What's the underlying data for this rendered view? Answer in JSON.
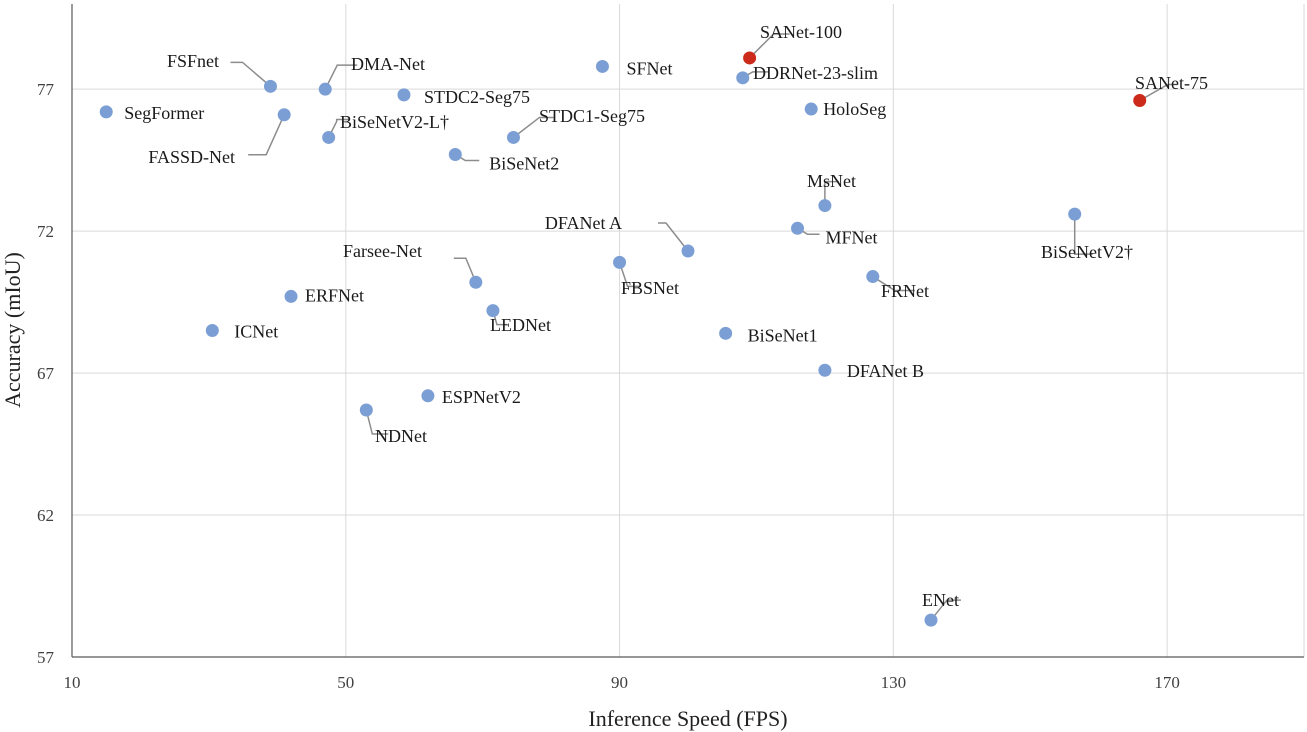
{
  "chart_data": {
    "type": "scatter",
    "xlabel": "Inference Speed (FPS)",
    "ylabel": "Accuracy (mIoU)",
    "xlim": [
      10,
      190
    ],
    "ylim": [
      57,
      80
    ],
    "xticks": [
      10,
      50,
      90,
      130,
      170
    ],
    "yticks": [
      57,
      62,
      67,
      72,
      77
    ],
    "grid": true,
    "colors": {
      "default": "#7b9fd4",
      "highlight": "#cc2a1a"
    },
    "points": [
      {
        "label": "SegFormer",
        "x": 15,
        "y": 76.2
      },
      {
        "label": "FSFnet",
        "x": 39,
        "y": 77.1
      },
      {
        "label": "FASSD-Net",
        "x": 41,
        "y": 76.1
      },
      {
        "label": "ERFNet",
        "x": 42,
        "y": 69.7
      },
      {
        "label": "ICNet",
        "x": 30.5,
        "y": 68.5
      },
      {
        "label": "DMA-Net",
        "x": 47,
        "y": 77.0
      },
      {
        "label": "BiSeNetV2-L†",
        "x": 47.5,
        "y": 75.3
      },
      {
        "label": "STDC2-Seg75",
        "x": 58.5,
        "y": 76.8
      },
      {
        "label": "NDNet",
        "x": 53,
        "y": 65.7
      },
      {
        "label": "ESPNetV2",
        "x": 62,
        "y": 66.2
      },
      {
        "label": "BiSeNet2",
        "x": 66,
        "y": 74.7
      },
      {
        "label": "Farsee-Net",
        "x": 69,
        "y": 70.2
      },
      {
        "label": "LEDNet",
        "x": 71.5,
        "y": 69.2
      },
      {
        "label": "STDC1-Seg75",
        "x": 74.5,
        "y": 75.3
      },
      {
        "label": "SFNet",
        "x": 87.5,
        "y": 77.8
      },
      {
        "label": "FBSNet",
        "x": 90,
        "y": 70.9
      },
      {
        "label": "DFANet A",
        "x": 100,
        "y": 71.3
      },
      {
        "label": "BiSeNet1",
        "x": 105.5,
        "y": 68.4
      },
      {
        "label": "DDRNet-23-slim",
        "x": 108,
        "y": 77.4
      },
      {
        "label": "SANet-100",
        "x": 109,
        "y": 78.1,
        "highlight": true
      },
      {
        "label": "HoloSeg",
        "x": 118,
        "y": 76.3
      },
      {
        "label": "MFNet",
        "x": 116,
        "y": 72.1
      },
      {
        "label": "MsNet",
        "x": 120,
        "y": 72.9
      },
      {
        "label": "DFANet B",
        "x": 120,
        "y": 67.1
      },
      {
        "label": "FRNet",
        "x": 127,
        "y": 70.4
      },
      {
        "label": "ENet",
        "x": 135.5,
        "y": 58.3
      },
      {
        "label": "BiSeNetV2†",
        "x": 156.5,
        "y": 72.6
      },
      {
        "label": "SANet-75",
        "x": 166,
        "y": 76.6,
        "highlight": true
      }
    ]
  }
}
